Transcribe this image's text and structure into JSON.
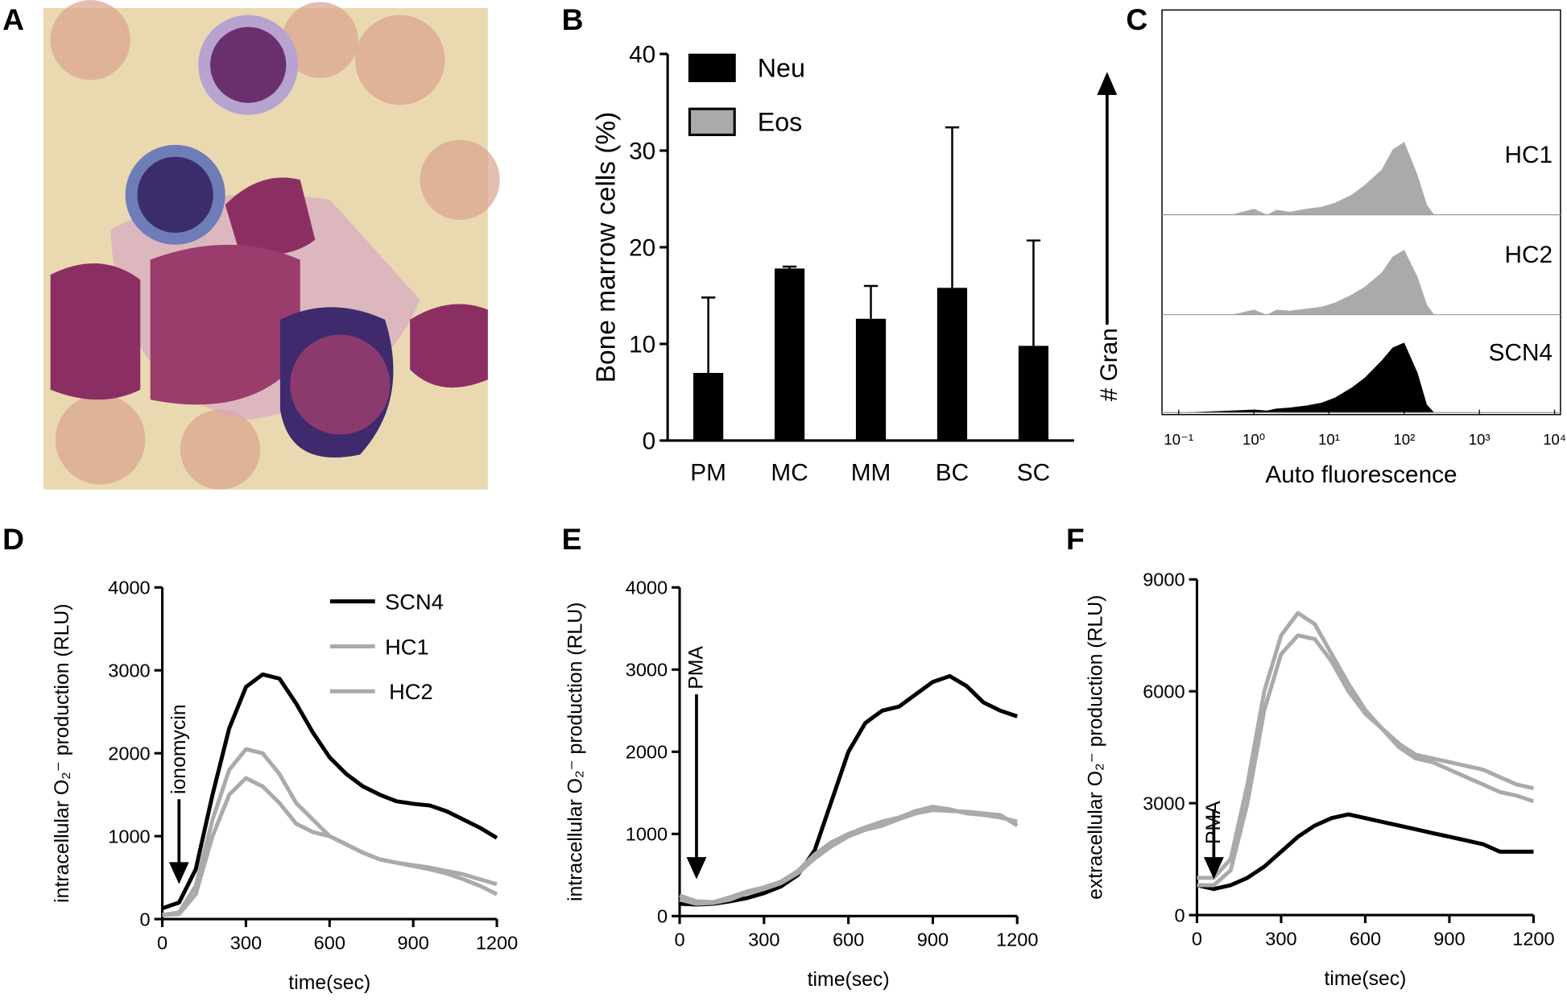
{
  "panel_labels": [
    "A",
    "B",
    "C",
    "D",
    "E",
    "F"
  ],
  "chart_data": [
    {
      "type": "bar",
      "ylabel": "Bone marrow cells (%)",
      "categories": [
        "PM",
        "MC",
        "MM",
        "BC",
        "SC"
      ],
      "series": [
        {
          "name": "Neu",
          "color": "#000000",
          "values": [
            7,
            17.8,
            12.6,
            15.8,
            9.8
          ],
          "errors": [
            7.8,
            0.2,
            3.4,
            16.6,
            10.9
          ]
        },
        {
          "name": "Eos",
          "color": "#aaaaaa",
          "values": [
            0,
            0,
            0,
            0,
            0
          ]
        }
      ],
      "ylim": [
        0,
        40
      ],
      "yticks": [
        0,
        10,
        20,
        30,
        40
      ],
      "legend": true
    },
    {
      "type": "density",
      "xlabel": "Auto fluorescence",
      "ylabel": "# Gran",
      "log_x": true,
      "x": [
        0.1,
        0.5,
        1,
        1.5,
        2,
        3,
        5,
        8,
        12,
        20,
        30,
        50,
        70,
        100,
        150,
        200,
        250
      ],
      "series": [
        {
          "name": "HC1",
          "color": "#aaaaaa",
          "values": [
            0,
            0,
            6,
            0,
            5,
            3,
            6,
            8,
            12,
            20,
            30,
            45,
            65,
            73,
            40,
            10,
            0
          ]
        },
        {
          "name": "HC2",
          "color": "#aaaaaa",
          "values": [
            0,
            0,
            5,
            0,
            5,
            4,
            6,
            8,
            12,
            20,
            28,
            42,
            58,
            65,
            38,
            10,
            0
          ]
        },
        {
          "name": "SCN4",
          "color": "#000000",
          "values": [
            0,
            2,
            3,
            2,
            4,
            5,
            7,
            10,
            15,
            25,
            35,
            52,
            65,
            70,
            40,
            8,
            0
          ]
        }
      ],
      "xlim": [
        0.06,
        12000
      ],
      "xticks": [
        {
          "value": 0.1,
          "label": "10⁻¹"
        },
        {
          "value": 1,
          "label": "10⁰"
        },
        {
          "value": 10,
          "label": "10¹"
        },
        {
          "value": 100,
          "label": "10²"
        },
        {
          "value": 1000,
          "label": "10³"
        },
        {
          "value": 10000,
          "label": "10⁴"
        }
      ],
      "ylim": [
        0,
        100
      ]
    },
    {
      "type": "line",
      "xlabel": "time(sec)",
      "ylabel": "intracellular O₂⁻ production (RLU)",
      "annotation": {
        "text": "ionomycin",
        "x": 60
      },
      "x": [
        0,
        60,
        120,
        180,
        240,
        300,
        360,
        420,
        480,
        540,
        600,
        660,
        720,
        780,
        840,
        900,
        960,
        1020,
        1080,
        1140,
        1200
      ],
      "series": [
        {
          "name": "SCN4",
          "color": "#000000",
          "values": [
            130,
            200,
            600,
            1500,
            2300,
            2800,
            2950,
            2900,
            2600,
            2250,
            1950,
            1750,
            1600,
            1500,
            1420,
            1390,
            1370,
            1300,
            1200,
            1100,
            980
          ]
        },
        {
          "name": "HC1",
          "color": "#aaaaaa",
          "values": [
            50,
            80,
            400,
            1200,
            1800,
            2050,
            2000,
            1750,
            1400,
            1200,
            1000,
            900,
            800,
            720,
            680,
            650,
            620,
            580,
            540,
            480,
            420
          ]
        },
        {
          "name": "HC2",
          "color": "#aaaaaa",
          "values": [
            50,
            60,
            300,
            1000,
            1500,
            1700,
            1600,
            1400,
            1150,
            1050,
            1000,
            900,
            800,
            720,
            680,
            640,
            600,
            550,
            480,
            400,
            300
          ]
        }
      ],
      "xlim": [
        0,
        1200
      ],
      "xticks": [
        0,
        300,
        600,
        900,
        1200
      ],
      "ylim": [
        0,
        4000
      ],
      "yticks": [
        0,
        1000,
        2000,
        3000,
        4000
      ],
      "legend": true
    },
    {
      "type": "line",
      "xlabel": "time(sec)",
      "ylabel": "intracellular O₂⁻ production (RLU)",
      "annotation": {
        "text": "PMA",
        "x": 60
      },
      "x": [
        0,
        60,
        120,
        180,
        240,
        300,
        360,
        420,
        480,
        540,
        600,
        660,
        720,
        780,
        840,
        900,
        960,
        1020,
        1080,
        1140,
        1200
      ],
      "series": [
        {
          "color": "#000000",
          "values": [
            150,
            140,
            150,
            180,
            220,
            280,
            360,
            500,
            800,
            1400,
            2000,
            2350,
            2500,
            2550,
            2700,
            2850,
            2920,
            2800,
            2600,
            2500,
            2430
          ]
        },
        {
          "color": "#aaaaaa",
          "values": [
            250,
            180,
            170,
            230,
            300,
            350,
            420,
            550,
            750,
            900,
            1000,
            1080,
            1150,
            1200,
            1280,
            1330,
            1300,
            1250,
            1230,
            1200,
            1150
          ]
        },
        {
          "color": "#aaaaaa",
          "values": [
            200,
            150,
            160,
            200,
            280,
            330,
            400,
            520,
            700,
            850,
            970,
            1050,
            1100,
            1180,
            1250,
            1290,
            1280,
            1270,
            1250,
            1230,
            1100
          ]
        }
      ],
      "xlim": [
        0,
        1200
      ],
      "xticks": [
        0,
        300,
        600,
        900,
        1200
      ],
      "ylim": [
        0,
        4000
      ],
      "yticks": [
        0,
        1000,
        2000,
        3000,
        4000
      ]
    },
    {
      "type": "line",
      "xlabel": "time(sec)",
      "ylabel": "extracellular O₂⁻ production (RLU)",
      "annotation": {
        "text": "PMA",
        "x": 60
      },
      "x": [
        0,
        60,
        120,
        180,
        240,
        300,
        360,
        420,
        480,
        540,
        600,
        660,
        720,
        780,
        840,
        900,
        960,
        1020,
        1080,
        1140,
        1200
      ],
      "series": [
        {
          "color": "#000000",
          "values": [
            800,
            700,
            800,
            1000,
            1300,
            1700,
            2100,
            2400,
            2600,
            2700,
            2600,
            2500,
            2400,
            2300,
            2200,
            2100,
            2000,
            1900,
            1700,
            1700,
            1700
          ]
        },
        {
          "color": "#aaaaaa",
          "values": [
            1000,
            1000,
            1500,
            3500,
            6000,
            7500,
            8100,
            7800,
            7000,
            6200,
            5500,
            5000,
            4600,
            4300,
            4200,
            4100,
            4000,
            3900,
            3700,
            3500,
            3400
          ]
        },
        {
          "color": "#aaaaaa",
          "values": [
            800,
            800,
            1200,
            3000,
            5500,
            7000,
            7500,
            7400,
            6800,
            6000,
            5400,
            5000,
            4500,
            4200,
            4100,
            3900,
            3700,
            3500,
            3300,
            3200,
            3050
          ]
        }
      ],
      "xlim": [
        0,
        1200
      ],
      "xticks": [
        0,
        300,
        600,
        900,
        1200
      ],
      "ylim": [
        0,
        9000
      ],
      "yticks": [
        0,
        3000,
        6000,
        9000
      ]
    }
  ]
}
